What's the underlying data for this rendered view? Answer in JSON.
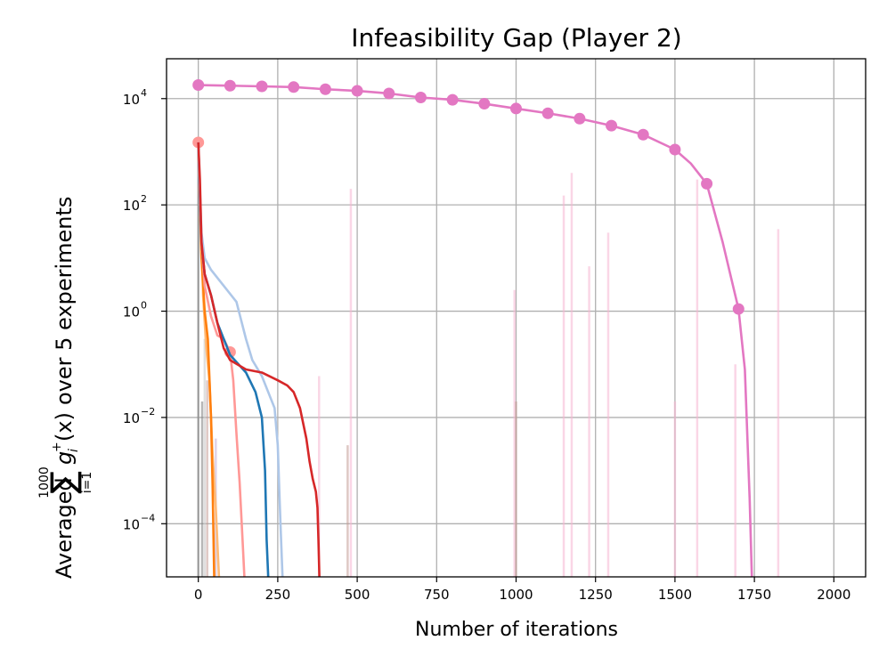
{
  "chart_data": {
    "type": "line",
    "title": "Infeasibility Gap (Player 2)",
    "xlabel": "Number of iterations",
    "ylabel": "Averaged  Σ_{i=1}^{1000} g_i^+(x) over 5 experiments",
    "ylabel_parts": {
      "prefix": "Averaged",
      "sum_upper": "1000",
      "sum_symbol": "∑",
      "sum_lower": "i=1",
      "function": "g",
      "func_sup": "+",
      "func_sub": "i",
      "argument": "(x)",
      "suffix": "over 5 experiments"
    },
    "xlim": [
      -100,
      2100
    ],
    "ylim_log10": [
      -5,
      4.75
    ],
    "yscale": "log",
    "grid": true,
    "x_ticks": [
      0,
      250,
      500,
      750,
      1000,
      1250,
      1500,
      1750,
      2000
    ],
    "x_tick_labels": [
      "0",
      "250",
      "500",
      "750",
      "1000",
      "1250",
      "1500",
      "1750",
      "2000"
    ],
    "y_ticks_log10": [
      -4,
      -2,
      0,
      2,
      4
    ],
    "y_tick_base": "10",
    "y_tick_exponents": [
      "−4",
      "−2",
      "0",
      "2",
      "4"
    ],
    "series": [
      {
        "name": "pink markers",
        "color": "#e377c2",
        "markers": true,
        "marker_x": [
          0,
          100,
          200,
          300,
          400,
          500,
          600,
          700,
          800,
          900,
          1000,
          1100,
          1200,
          1300,
          1400,
          1500,
          1600,
          1700
        ],
        "x": [
          0,
          100,
          200,
          300,
          400,
          500,
          600,
          700,
          800,
          900,
          1000,
          1100,
          1200,
          1300,
          1400,
          1500,
          1550,
          1600,
          1650,
          1700,
          1720,
          1735,
          1742
        ],
        "y": [
          18000,
          17500,
          17000,
          16500,
          15000,
          14000,
          12500,
          10500,
          9500,
          8000,
          6500,
          5300,
          4200,
          3100,
          2100,
          1100,
          600,
          250,
          20,
          1.1,
          0.08,
          0.0003,
          1e-05
        ]
      },
      {
        "name": "red",
        "color": "#d62728",
        "markers": false,
        "x": [
          0,
          5,
          10,
          20,
          40,
          60,
          80,
          100,
          150,
          200,
          250,
          280,
          300,
          320,
          340,
          350,
          360,
          370,
          375,
          378,
          381
        ],
        "y": [
          1500,
          300,
          20,
          5,
          2,
          0.6,
          0.2,
          0.12,
          0.08,
          0.07,
          0.05,
          0.04,
          0.03,
          0.015,
          0.004,
          0.0015,
          0.0007,
          0.0004,
          0.0002,
          5e-05,
          1e-05
        ]
      },
      {
        "name": "light blue",
        "color": "#aec7e8",
        "markers": false,
        "x": [
          0,
          5,
          10,
          20,
          40,
          80,
          120,
          150,
          170,
          200,
          220,
          240,
          250,
          255,
          260,
          265
        ],
        "y": [
          1500,
          200,
          30,
          10,
          6,
          3,
          1.5,
          0.3,
          0.12,
          0.06,
          0.03,
          0.015,
          0.003,
          0.0004,
          6e-05,
          1e-05
        ]
      },
      {
        "name": "blue",
        "color": "#1f77b4",
        "markers": false,
        "x": [
          0,
          5,
          10,
          20,
          40,
          60,
          100,
          150,
          180,
          200,
          210,
          215,
          220
        ],
        "y": [
          1500,
          150,
          20,
          5,
          2,
          0.6,
          0.15,
          0.07,
          0.03,
          0.01,
          0.001,
          5e-05,
          1e-05
        ]
      },
      {
        "name": "salmon markers",
        "color": "#ff9896",
        "markers": true,
        "marker_x": [
          0,
          100
        ],
        "x": [
          0,
          5,
          10,
          20,
          40,
          60,
          80,
          100,
          110,
          120,
          130,
          140,
          145
        ],
        "y": [
          1500,
          100,
          20,
          3,
          0.8,
          0.35,
          0.3,
          0.17,
          0.05,
          0.005,
          0.0006,
          4e-05,
          1e-05
        ]
      },
      {
        "name": "orange",
        "color": "#ff7f0e",
        "markers": false,
        "x": [
          0,
          5,
          10,
          20,
          30,
          40,
          45,
          50
        ],
        "y": [
          1500,
          100,
          10,
          1,
          0.3,
          0.01,
          0.0005,
          1e-05
        ]
      },
      {
        "name": "light orange",
        "color": "#ffbb78",
        "markers": false,
        "x": [
          0,
          8,
          15,
          25,
          35,
          45,
          55,
          65
        ],
        "y": [
          1500,
          50,
          2,
          0.2,
          0.05,
          0.002,
          0.0002,
          1e-05
        ]
      }
    ],
    "spikes": [
      {
        "x": 0,
        "y": 1500,
        "color": "#7f7f7f"
      },
      {
        "x": 12,
        "y": 0.02,
        "color": "#7f7f7f"
      },
      {
        "x": 20,
        "y": 0.3,
        "color": "#c7c7c7"
      },
      {
        "x": 28,
        "y": 0.05,
        "color": "#c49c94"
      },
      {
        "x": 55,
        "y": 0.004,
        "color": "#c5b0d5"
      },
      {
        "x": 380,
        "y": 0.06,
        "color": "#f7b6d2"
      },
      {
        "x": 470,
        "y": 0.003,
        "color": "#c49c94"
      },
      {
        "x": 480,
        "y": 200,
        "color": "#f7b6d2"
      },
      {
        "x": 995,
        "y": 2.5,
        "color": "#f7b6d2"
      },
      {
        "x": 1000,
        "y": 0.02,
        "color": "#c49c94"
      },
      {
        "x": 1150,
        "y": 150,
        "color": "#f7b6d2"
      },
      {
        "x": 1175,
        "y": 400,
        "color": "#f7b6d2"
      },
      {
        "x": 1230,
        "y": 7,
        "color": "#f7b6d2"
      },
      {
        "x": 1290,
        "y": 30,
        "color": "#f7b6d2"
      },
      {
        "x": 1500,
        "y": 0.02,
        "color": "#f7b6d2"
      },
      {
        "x": 1570,
        "y": 300,
        "color": "#f7b6d2"
      },
      {
        "x": 1690,
        "y": 0.1,
        "color": "#f7b6d2"
      },
      {
        "x": 1825,
        "y": 35,
        "color": "#f7b6d2"
      }
    ]
  }
}
